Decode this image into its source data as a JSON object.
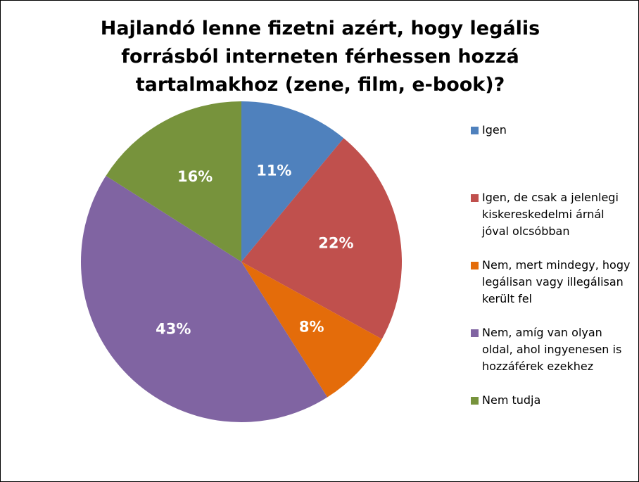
{
  "chart_data": {
    "type": "pie",
    "title": "Hajlandó lenne fizetni azért, hogy legális forrásból interneten férhessen hozzá tartalmakhoz (zene, film, e-book)?",
    "categories": [
      "Igen",
      "Igen, de csak a jelenlegi kiskereskedelmi árnál jóval olcsóbban",
      "Nem, mert mindegy, hogy legálisan vagy illegálisan került fel",
      "Nem, amíg van olyan oldal, ahol ingyenesen is hozzáférek ezekhez",
      "Nem tudja"
    ],
    "values": [
      11,
      22,
      8,
      43,
      16
    ],
    "value_labels": [
      "11%",
      "22%",
      "8%",
      "43%",
      "16%"
    ],
    "colors": [
      "#4f81bd",
      "#c0504d",
      "#e46c0a",
      "#8064a2",
      "#77933c"
    ],
    "legend": "right"
  }
}
